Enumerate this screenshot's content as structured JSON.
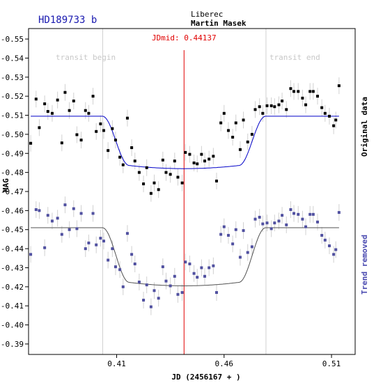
{
  "chart_data": {
    "type": "scatter",
    "title": "HD189733 b",
    "location": "Liberec",
    "observer": "Martin Masek",
    "jdmid_label": "JDmid: 0.44137",
    "jdmid": 0.44137,
    "transit_begin_label": "transit begin",
    "transit_end_label": "transit end",
    "transit_begin": 0.4035,
    "transit_end": 0.4795,
    "xlabel": "JD (2456167 + )",
    "ylabel": "MAG",
    "xlim": [
      0.369,
      0.521
    ],
    "ylim": [
      -0.5555,
      -0.3845
    ],
    "x_ticks": [
      0.41,
      0.46,
      0.51
    ],
    "x_tick_labels": [
      "0.41",
      "0.46",
      "0.51"
    ],
    "y_ticks": [
      -0.55,
      -0.54,
      -0.53,
      -0.52,
      -0.51,
      -0.5,
      -0.49,
      -0.48,
      -0.47,
      -0.46,
      -0.45,
      -0.44,
      -0.43,
      -0.42,
      -0.41,
      -0.4,
      -0.39
    ],
    "y_tick_labels": [
      "-0.55",
      "-0.54",
      "-0.53",
      "-0.52",
      "-0.51",
      "-0.50",
      "-0.49",
      "-0.48",
      "-0.47",
      "-0.46",
      "-0.45",
      "-0.44",
      "-0.43",
      "-0.42",
      "-0.41",
      "-0.40",
      "-0.39"
    ],
    "grid": false,
    "series": [
      {
        "name": "Original data",
        "color": "#000000",
        "model_color": "#0000c8",
        "model_oot": -0.5095,
        "model_depth": 0.0275,
        "x": [
          0.37,
          0.3725,
          0.374,
          0.3765,
          0.378,
          0.38,
          0.3825,
          0.3845,
          0.386,
          0.388,
          0.39,
          0.3915,
          0.3935,
          0.3955,
          0.397,
          0.399,
          0.4005,
          0.4025,
          0.404,
          0.406,
          0.408,
          0.4095,
          0.4115,
          0.413,
          0.415,
          0.417,
          0.4185,
          0.4205,
          0.4225,
          0.424,
          0.426,
          0.4275,
          0.4295,
          0.4315,
          0.433,
          0.435,
          0.437,
          0.4385,
          0.4405,
          0.442,
          0.444,
          0.446,
          0.4475,
          0.4495,
          0.451,
          0.453,
          0.455,
          0.4565,
          0.4585,
          0.46,
          0.462,
          0.464,
          0.4655,
          0.4675,
          0.469,
          0.471,
          0.473,
          0.4745,
          0.4765,
          0.478,
          0.48,
          0.482,
          0.4835,
          0.4855,
          0.487,
          0.489,
          0.491,
          0.4925,
          0.4945,
          0.4965,
          0.498,
          0.5,
          0.5015,
          0.5035,
          0.5055,
          0.507,
          0.509,
          0.511,
          0.512,
          0.5135
        ],
        "y": [
          -0.4953,
          -0.5185,
          -0.5035,
          -0.516,
          -0.512,
          -0.511,
          -0.518,
          -0.4955,
          -0.522,
          -0.5125,
          -0.5175,
          -0.4998,
          -0.497,
          -0.5125,
          -0.511,
          -0.52,
          -0.5015,
          -0.5055,
          -0.502,
          -0.4915,
          -0.503,
          -0.497,
          -0.488,
          -0.484,
          -0.5085,
          -0.493,
          -0.486,
          -0.48,
          -0.474,
          -0.4825,
          -0.469,
          -0.4745,
          -0.471,
          -0.4865,
          -0.48,
          -0.479,
          -0.486,
          -0.4775,
          -0.4745,
          -0.4905,
          -0.4895,
          -0.485,
          -0.4845,
          -0.4895,
          -0.486,
          -0.487,
          -0.4885,
          -0.4755,
          -0.506,
          -0.511,
          -0.502,
          -0.4985,
          -0.506,
          -0.492,
          -0.5075,
          -0.496,
          -0.5,
          -0.513,
          -0.5145,
          -0.511,
          -0.515,
          -0.515,
          -0.5145,
          -0.5155,
          -0.5175,
          -0.513,
          -0.524,
          -0.5225,
          -0.5225,
          -0.519,
          -0.5155,
          -0.5225,
          -0.5225,
          -0.52,
          -0.514,
          -0.511,
          -0.5095,
          -0.5045,
          -0.5075,
          -0.5255
        ]
      },
      {
        "name": "Trend removed",
        "color": "#5050a0",
        "model_color": "#505050",
        "model_oot": -0.451,
        "model_depth": 0.0305,
        "x": [
          0.37,
          0.3725,
          0.374,
          0.3765,
          0.378,
          0.38,
          0.3825,
          0.3845,
          0.386,
          0.388,
          0.39,
          0.3915,
          0.3935,
          0.3955,
          0.397,
          0.399,
          0.4005,
          0.4025,
          0.404,
          0.406,
          0.408,
          0.4095,
          0.4115,
          0.413,
          0.415,
          0.417,
          0.4185,
          0.4205,
          0.4225,
          0.424,
          0.426,
          0.4275,
          0.4295,
          0.4315,
          0.433,
          0.435,
          0.437,
          0.4385,
          0.4405,
          0.442,
          0.444,
          0.446,
          0.4475,
          0.4495,
          0.451,
          0.453,
          0.455,
          0.4565,
          0.4585,
          0.46,
          0.462,
          0.464,
          0.4655,
          0.4675,
          0.469,
          0.471,
          0.473,
          0.4745,
          0.4765,
          0.478,
          0.48,
          0.482,
          0.4835,
          0.4855,
          0.487,
          0.489,
          0.491,
          0.4925,
          0.4945,
          0.4965,
          0.498,
          0.5,
          0.5015,
          0.5035,
          0.5055,
          0.507,
          0.509,
          0.511,
          0.512,
          0.5135
        ],
        "y": [
          -0.437,
          -0.4605,
          -0.46,
          -0.4405,
          -0.4575,
          -0.4545,
          -0.456,
          -0.4475,
          -0.463,
          -0.45,
          -0.461,
          -0.4505,
          -0.4585,
          -0.44,
          -0.443,
          -0.4585,
          -0.442,
          -0.4455,
          -0.444,
          -0.434,
          -0.44,
          -0.4305,
          -0.429,
          -0.42,
          -0.448,
          -0.437,
          -0.432,
          -0.4225,
          -0.413,
          -0.421,
          -0.4095,
          -0.418,
          -0.414,
          -0.4305,
          -0.423,
          -0.4205,
          -0.4255,
          -0.416,
          -0.417,
          -0.433,
          -0.432,
          -0.427,
          -0.425,
          -0.43,
          -0.4255,
          -0.43,
          -0.431,
          -0.417,
          -0.4475,
          -0.4515,
          -0.447,
          -0.4425,
          -0.45,
          -0.4355,
          -0.4495,
          -0.438,
          -0.441,
          -0.4555,
          -0.4565,
          -0.453,
          -0.4535,
          -0.4505,
          -0.4535,
          -0.4545,
          -0.4575,
          -0.4525,
          -0.4605,
          -0.4585,
          -0.458,
          -0.4555,
          -0.4515,
          -0.458,
          -0.458,
          -0.454,
          -0.447,
          -0.4445,
          -0.4415,
          -0.437,
          -0.4395,
          -0.459
        ]
      }
    ]
  }
}
